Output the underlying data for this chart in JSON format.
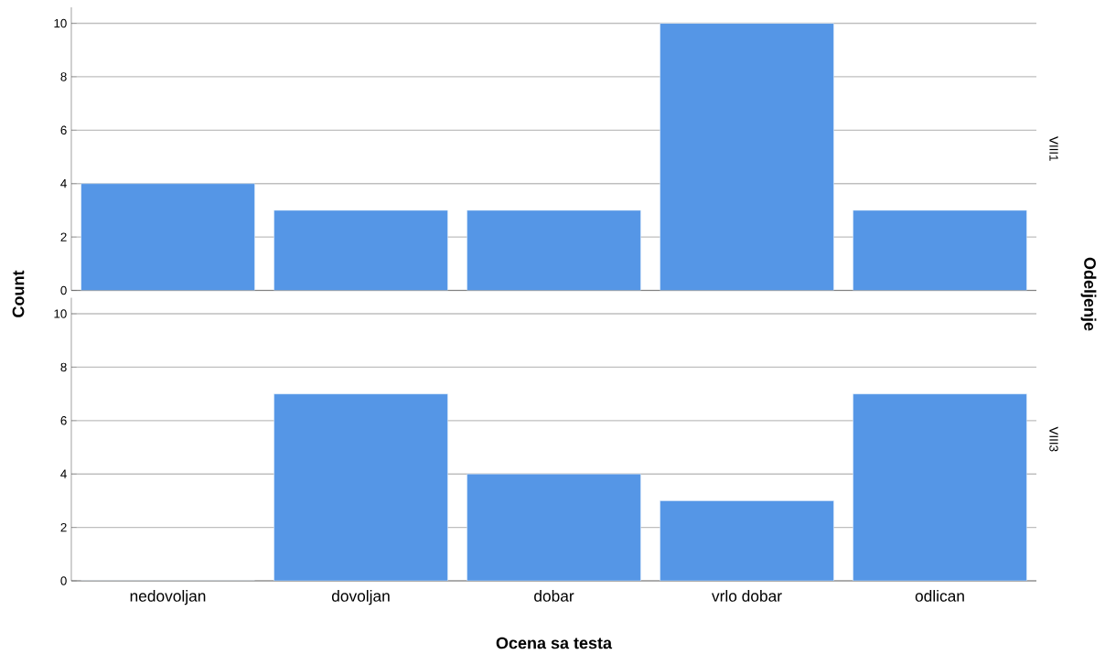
{
  "chart_data": [
    {
      "type": "bar",
      "y2label": "VIII1",
      "ylabel": "Count",
      "annotations": [
        "Odeljenje"
      ],
      "categories": [
        null,
        null,
        null,
        null,
        null
      ],
      "values": [
        4,
        3,
        3,
        10,
        3
      ],
      "color": "#5596e6",
      "ylim": [
        0,
        10.6
      ],
      "yticks": [
        0,
        2,
        4,
        6,
        8,
        10
      ],
      "grid": "y"
    },
    {
      "type": "bar",
      "y2label": "VIII3",
      "xlabel": "Ocena sa testa",
      "categories": [
        "nedovoljan",
        "dovoljan",
        "dobar",
        "vrlo dobar",
        "odlican"
      ],
      "values": [
        0,
        7,
        4,
        3,
        7
      ],
      "color": "#5596e6",
      "ylim": [
        0,
        10.6
      ],
      "yticks": [
        0,
        2,
        4,
        6,
        8,
        10
      ],
      "grid": "y"
    }
  ]
}
